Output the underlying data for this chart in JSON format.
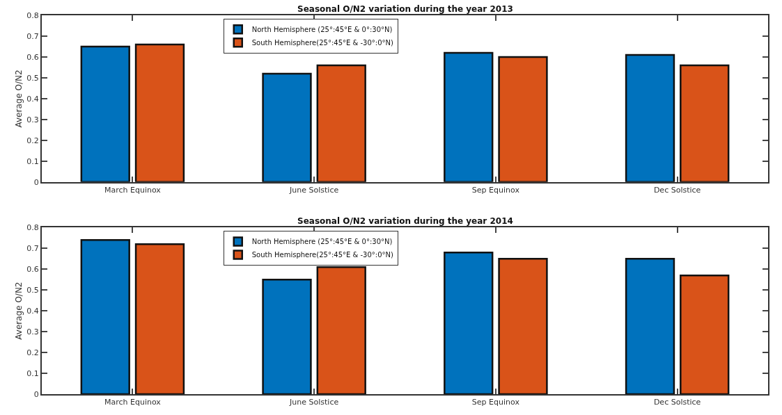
{
  "chart_data": [
    {
      "type": "bar",
      "title": "Seasonal O/N2 variation during the year 2013",
      "ylabel": "Average O/N2",
      "categories": [
        "March Equinox",
        "June Solstice",
        "Sep Equinox",
        "Dec Solstice"
      ],
      "series": [
        {
          "name": "North Hemisphere (25°:45°E & 0°:30°N)",
          "color": "#0072bd",
          "values": [
            0.65,
            0.52,
            0.62,
            0.61
          ]
        },
        {
          "name": "South Hemisphere(25°:45°E & -30°:0°N)",
          "color": "#d95319",
          "values": [
            0.66,
            0.56,
            0.6,
            0.56
          ]
        }
      ],
      "ylim": [
        0,
        0.8
      ],
      "yticks": [
        0,
        0.1,
        0.2,
        0.3,
        0.4,
        0.5,
        0.6,
        0.7,
        0.8
      ],
      "grid": false,
      "legend": "top"
    },
    {
      "type": "bar",
      "title": "Seasonal O/N2 variation during the year 2014",
      "ylabel": "Average O/N2",
      "categories": [
        "March Equinox",
        "June Solstice",
        "Sep Equinox",
        "Dec Solstice"
      ],
      "series": [
        {
          "name": "North Hemisphere (25°:45°E & 0°:30°N)",
          "color": "#0072bd",
          "values": [
            0.74,
            0.55,
            0.68,
            0.65
          ]
        },
        {
          "name": "South Hemisphere(25°:45°E & -30°:0°N)",
          "color": "#d95319",
          "values": [
            0.72,
            0.61,
            0.65,
            0.57
          ]
        }
      ],
      "ylim": [
        0,
        0.8
      ],
      "yticks": [
        0,
        0.1,
        0.2,
        0.3,
        0.4,
        0.5,
        0.6,
        0.7,
        0.8
      ],
      "grid": false,
      "legend": "top"
    }
  ]
}
